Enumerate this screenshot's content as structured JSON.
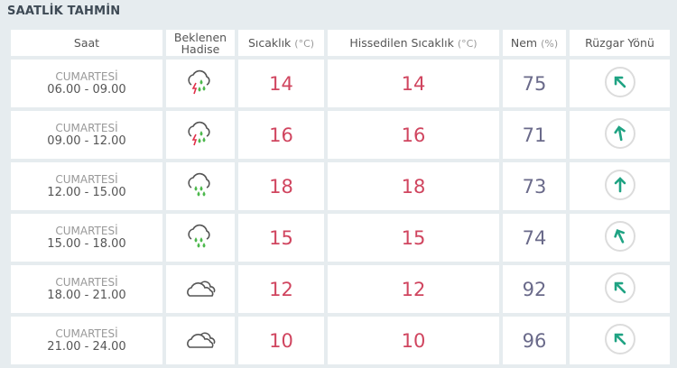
{
  "title": "SAATLİK TAHMİN",
  "headers": {
    "saat": "Saat",
    "hadise": "Beklenen Hadise",
    "sicaklik": "Sıcaklık",
    "sicaklik_unit": "(°C)",
    "hissedilen": "Hissedilen Sıcaklık",
    "hissedilen_unit": "(°C)",
    "nem": "Nem",
    "nem_unit": "(%)",
    "ruzgar": "Rüzgar Yönü"
  },
  "colors": {
    "temp": "#d0455f",
    "humidity": "#6a6a8a",
    "wind_arrow": "#1fa383",
    "rain": "#4cb84c",
    "lightning": "#e0304a"
  },
  "rows": [
    {
      "day": "CUMARTESİ",
      "time": "06.00 - 09.00",
      "icon": "thunder-rain-icon",
      "temp": "14",
      "feels": "14",
      "humidity": "75",
      "wind_deg": -45
    },
    {
      "day": "CUMARTESİ",
      "time": "09.00 - 12.00",
      "icon": "thunder-rain-icon",
      "temp": "16",
      "feels": "16",
      "humidity": "71",
      "wind_deg": -10
    },
    {
      "day": "CUMARTESİ",
      "time": "12.00 - 15.00",
      "icon": "rain-icon",
      "temp": "18",
      "feels": "18",
      "humidity": "73",
      "wind_deg": 0
    },
    {
      "day": "CUMARTESİ",
      "time": "15.00 - 18.00",
      "icon": "rain-icon",
      "temp": "15",
      "feels": "15",
      "humidity": "74",
      "wind_deg": -25
    },
    {
      "day": "CUMARTESİ",
      "time": "18.00 - 21.00",
      "icon": "cloud-icon",
      "temp": "12",
      "feels": "12",
      "humidity": "92",
      "wind_deg": -45
    },
    {
      "day": "CUMARTESİ",
      "time": "21.00 - 24.00",
      "icon": "cloud-icon",
      "temp": "10",
      "feels": "10",
      "humidity": "96",
      "wind_deg": -45
    }
  ]
}
